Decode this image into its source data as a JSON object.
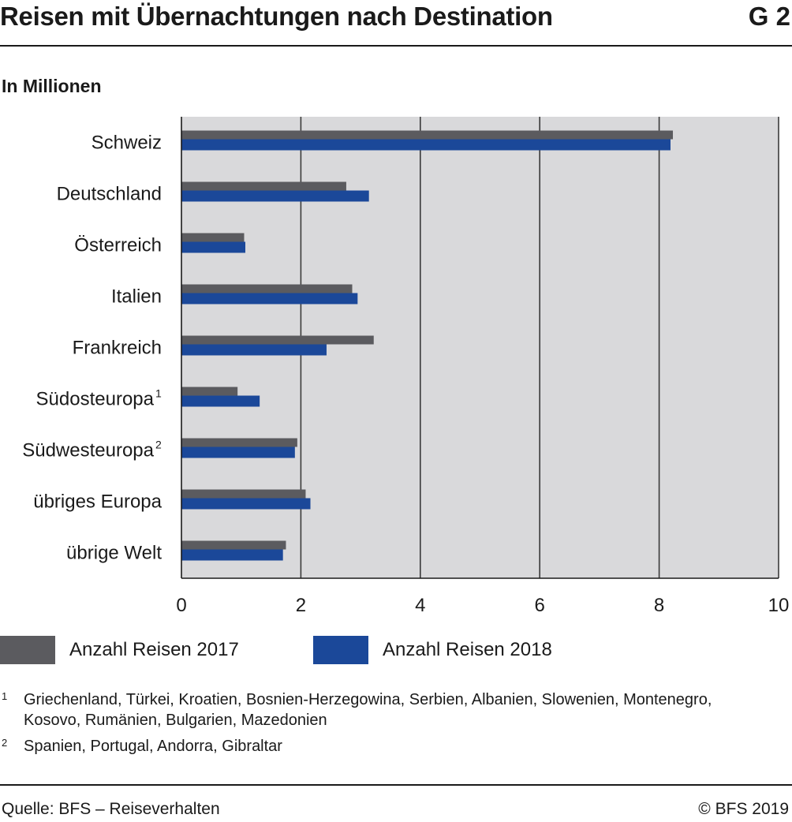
{
  "header": {
    "title": "Reisen mit Übernachtungen nach Destination",
    "figure_number": "G 2",
    "subtitle": "In Millionen"
  },
  "chart_data": {
    "type": "bar",
    "orientation": "horizontal",
    "title": "Reisen mit Übernachtungen nach Destination",
    "unit": "In Millionen",
    "categories": [
      "Schweiz",
      "Deutschland",
      "Österreich",
      "Italien",
      "Frankreich",
      "Südosteuropa",
      "Südwesteuropa",
      "übriges Europa",
      "übrige Welt"
    ],
    "category_superscripts": [
      "",
      "",
      "",
      "",
      "",
      "1",
      "2",
      "",
      ""
    ],
    "series": [
      {
        "name": "Anzahl Reisen 2017",
        "color": "#5b5b5f",
        "values": [
          8.23,
          2.76,
          1.05,
          2.86,
          3.22,
          0.94,
          1.94,
          2.08,
          1.75
        ]
      },
      {
        "name": "Anzahl Reisen 2018",
        "color": "#1b4899",
        "values": [
          8.19,
          3.14,
          1.07,
          2.95,
          2.43,
          1.31,
          1.9,
          2.16,
          1.7
        ]
      }
    ],
    "xlim": [
      0,
      10
    ],
    "xticks": [
      "0",
      "2",
      "4",
      "6",
      "8",
      "10"
    ],
    "grid": true,
    "plot_background": "#d9d9db",
    "legend_position": "bottom"
  },
  "legend": {
    "items": [
      {
        "label": "Anzahl Reisen 2017",
        "color": "#5b5b5f"
      },
      {
        "label": "Anzahl Reisen 2018",
        "color": "#1b4899"
      }
    ]
  },
  "footnotes": [
    {
      "marker": "1",
      "text": "Griechenland, Türkei, Kroatien, Bosnien-Herzegowina, Serbien, Albanien, Slowenien, Montenegro, Kosovo, Rumänien, Bulgarien, Mazedonien"
    },
    {
      "marker": "2",
      "text": "Spanien, Portugal, Andorra, Gibraltar"
    }
  ],
  "footer": {
    "source": "Quelle: BFS – Reiseverhalten",
    "copyright": "© BFS 2019"
  }
}
